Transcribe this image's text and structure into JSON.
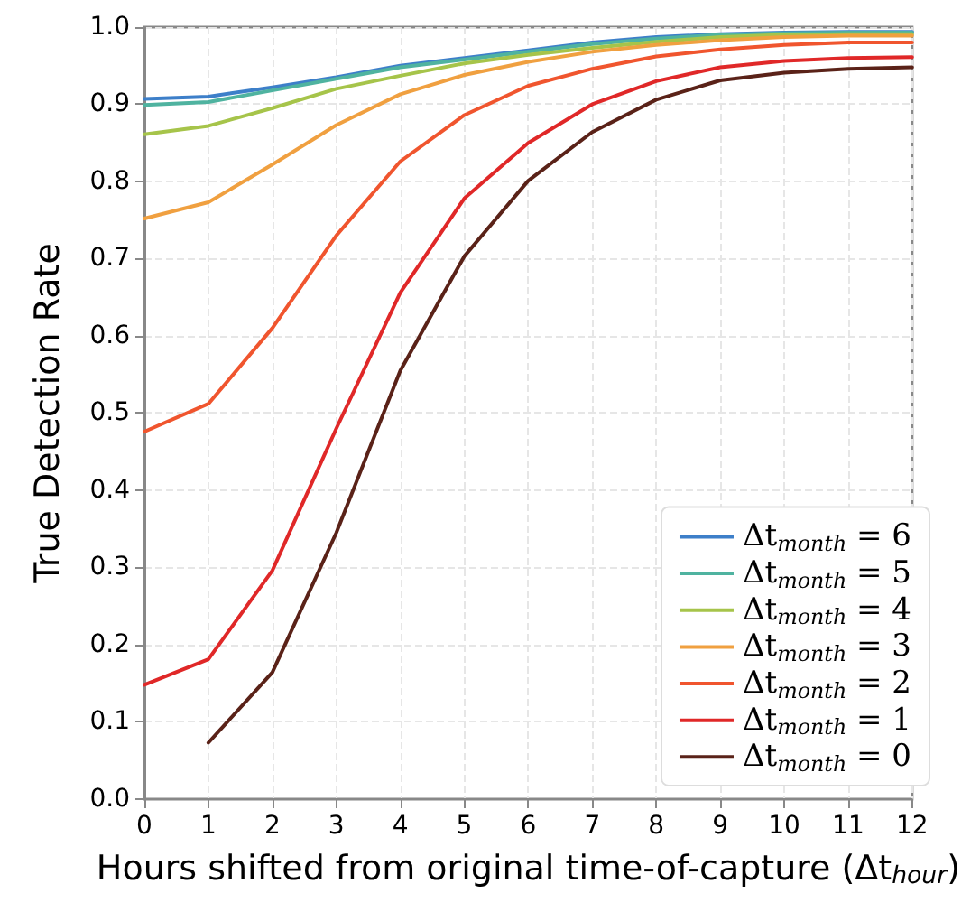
{
  "chart_data": {
    "type": "line",
    "xlabel": "Hours shifted from original time-of-capture (Δt$_{hour}$)",
    "ylabel": "True Detection Rate",
    "x": [
      0,
      1,
      2,
      3,
      4,
      5,
      6,
      7,
      8,
      9,
      10,
      11,
      12
    ],
    "series": [
      {
        "name": "Δt$_{month}$ = 6",
        "color": "#3d7fc9",
        "values": [
          0.907,
          0.91,
          0.922,
          0.935,
          0.95,
          0.96,
          0.97,
          0.98,
          0.987,
          0.991,
          0.993,
          0.994,
          0.994
        ]
      },
      {
        "name": "Δt$_{month}$ = 5",
        "color": "#4fb3a0",
        "values": [
          0.899,
          0.903,
          0.918,
          0.933,
          0.948,
          0.958,
          0.968,
          0.978,
          0.985,
          0.99,
          0.992,
          0.993,
          0.993
        ]
      },
      {
        "name": "Δt$_{month}$ = 4",
        "color": "#a6c44a",
        "values": [
          0.861,
          0.872,
          0.895,
          0.92,
          0.937,
          0.953,
          0.964,
          0.973,
          0.981,
          0.987,
          0.99,
          0.991,
          0.991
        ]
      },
      {
        "name": "Δt$_{month}$ = 3",
        "color": "#f0a040",
        "values": [
          0.752,
          0.773,
          0.822,
          0.873,
          0.913,
          0.938,
          0.955,
          0.968,
          0.977,
          0.983,
          0.987,
          0.989,
          0.989
        ]
      },
      {
        "name": "Δt$_{month}$ = 2",
        "color": "#f0552e",
        "values": [
          0.476,
          0.512,
          0.61,
          0.73,
          0.826,
          0.886,
          0.924,
          0.946,
          0.962,
          0.971,
          0.977,
          0.98,
          0.98
        ]
      },
      {
        "name": "Δt$_{month}$ = 1",
        "color": "#e02828",
        "values": [
          0.148,
          0.181,
          0.296,
          0.48,
          0.656,
          0.778,
          0.85,
          0.9,
          0.93,
          0.948,
          0.956,
          0.96,
          0.961
        ]
      },
      {
        "name": "Δt$_{month}$ = 0",
        "color": "#5a2218",
        "values": [
          null,
          0.073,
          0.164,
          0.345,
          0.555,
          0.703,
          0.801,
          0.864,
          0.906,
          0.931,
          0.941,
          0.946,
          0.948
        ]
      }
    ],
    "xlim": [
      0,
      12
    ],
    "xticks": [
      0,
      1,
      2,
      3,
      4,
      5,
      6,
      7,
      8,
      9,
      10,
      11,
      12
    ],
    "ylim": [
      0,
      1
    ],
    "yticks": [
      {
        "value": 0,
        "label": "0.0"
      },
      0.1,
      0.2,
      0.3,
      0.4,
      0.5,
      0.6,
      0.7,
      0.8,
      0.9,
      {
        "value": 1,
        "label": "1.0"
      }
    ],
    "grid": true,
    "legend": "bottom right",
    "marker": "none",
    "line_style": "solid"
  }
}
